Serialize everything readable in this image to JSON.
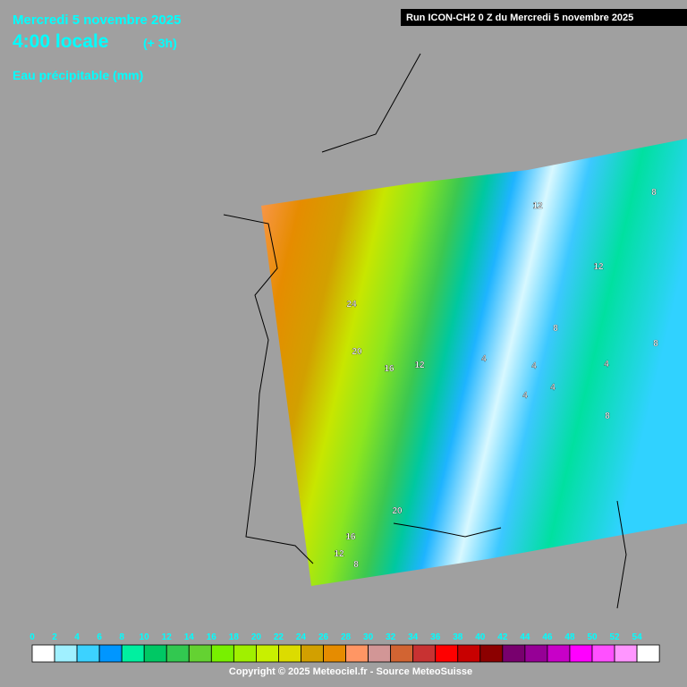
{
  "header": {
    "date": "Mercredi 5 novembre 2025",
    "time": "4:00 locale",
    "offset": "(+ 3h)",
    "variable": "Eau précipitable (mm)",
    "run": "Run ICON-CH2 0 Z du Mercredi 5 novembre 2025"
  },
  "map": {
    "contour_labels": [
      "12",
      "8",
      "12",
      "24",
      "20",
      "16",
      "12",
      "8",
      "4",
      "4",
      "4",
      "4",
      "4",
      "8",
      "8",
      "20",
      "16",
      "12",
      "8"
    ]
  },
  "legend": {
    "ticks": [
      0,
      2,
      4,
      6,
      8,
      10,
      12,
      14,
      16,
      18,
      20,
      22,
      24,
      26,
      28,
      30,
      32,
      34,
      36,
      38,
      40,
      42,
      44,
      46,
      48,
      50,
      52,
      54
    ],
    "colors": [
      "#ffffff",
      "#a0f0ff",
      "#3cd2ff",
      "#0096ff",
      "#00f0a0",
      "#00c864",
      "#32c850",
      "#64d232",
      "#78f000",
      "#a0f000",
      "#c8f000",
      "#dcdc00",
      "#d2a000",
      "#e68c00",
      "#ff9664",
      "#d29696",
      "#d26432",
      "#c83232",
      "#ff0000",
      "#c80000",
      "#8c0000",
      "#78006e",
      "#960096",
      "#c800c8",
      "#ff00ff",
      "#ff50ff",
      "#ff96ff",
      "#ffffff"
    ]
  },
  "footer": {
    "copyright": "Copyright © 2025 Meteociel.fr - Source MeteoSuisse"
  }
}
